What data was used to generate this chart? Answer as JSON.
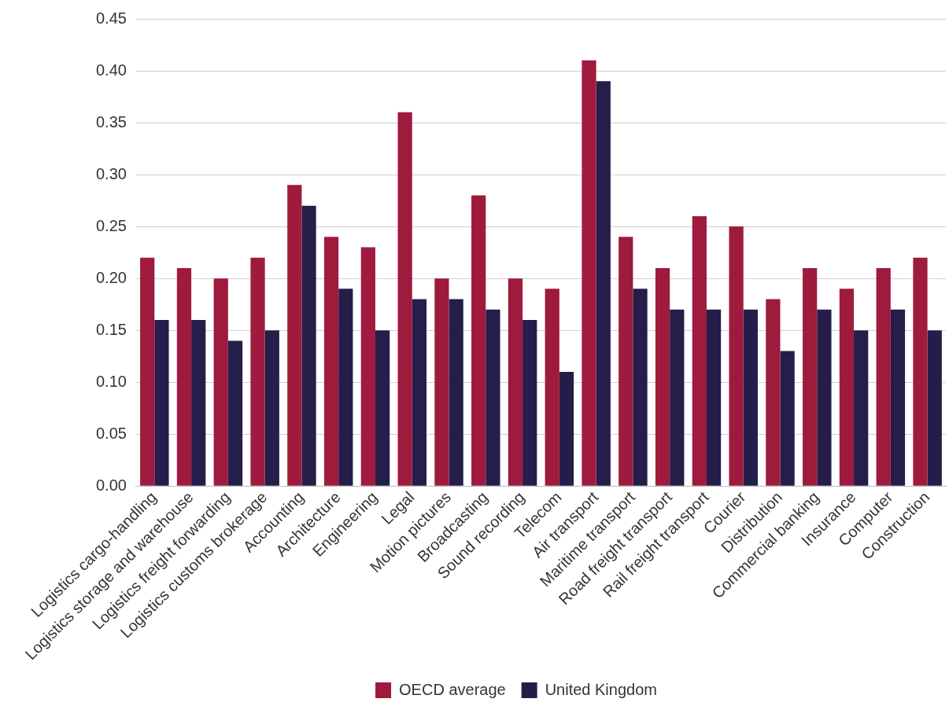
{
  "chart_data": {
    "type": "bar",
    "categories": [
      "Logistics cargo-handling",
      "Logistics storage and warehouse",
      "Logistics freight forwarding",
      "Logistics customs brokerage",
      "Accounting",
      "Architecture",
      "Engineering",
      "Legal",
      "Motion pictures",
      "Broadcasting",
      "Sound recording",
      "Telecom",
      "Air transport",
      "Maritime transport",
      "Road freight transport",
      "Rail freight transport",
      "Courier",
      "Distribution",
      "Commercial banking",
      "Insurance",
      "Computer",
      "Construction"
    ],
    "series": [
      {
        "name": "OECD average",
        "color": "#9e1b3e",
        "values": [
          0.22,
          0.21,
          0.2,
          0.22,
          0.29,
          0.24,
          0.23,
          0.36,
          0.2,
          0.28,
          0.2,
          0.19,
          0.41,
          0.24,
          0.21,
          0.26,
          0.25,
          0.18,
          0.21,
          0.19,
          0.21,
          0.22
        ]
      },
      {
        "name": "United Kingdom",
        "color": "#251d4a",
        "values": [
          0.16,
          0.16,
          0.14,
          0.15,
          0.27,
          0.19,
          0.15,
          0.18,
          0.18,
          0.17,
          0.16,
          0.11,
          0.39,
          0.19,
          0.17,
          0.17,
          0.17,
          0.13,
          0.17,
          0.15,
          0.17,
          0.15
        ]
      }
    ],
    "ylim": [
      0,
      0.45
    ],
    "yticks": [
      {
        "value": 0,
        "label": "0.00"
      },
      {
        "value": 0.05,
        "label": "0.05"
      },
      {
        "value": 0.1,
        "label": "0.10"
      },
      {
        "value": 0.15,
        "label": "0.15"
      },
      {
        "value": 0.2,
        "label": "0.20"
      },
      {
        "value": 0.25,
        "label": "0.25"
      },
      {
        "value": 0.3,
        "label": "0.30"
      },
      {
        "value": 0.35,
        "label": "0.35"
      },
      {
        "value": 0.4,
        "label": "0.40"
      },
      {
        "value": 0.45,
        "label": "0.45"
      }
    ],
    "grid": "y",
    "legend": "bottom"
  }
}
